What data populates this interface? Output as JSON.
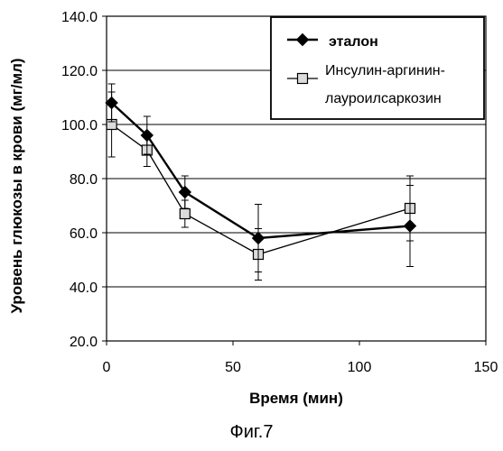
{
  "chart_data": {
    "type": "line",
    "xlabel": "Время (мин)",
    "ylabel": "Уровень глюкозы в крови (мг/мл)",
    "xlim": [
      0,
      150
    ],
    "ylim": [
      20,
      140
    ],
    "x_ticks": [
      "0",
      "50",
      "100",
      "150"
    ],
    "y_ticks": [
      "20.0",
      "40.0",
      "60.0",
      "80.0",
      "100.0",
      "120.0",
      "140.0"
    ],
    "grid": "horizontal",
    "legend_position": "top-right",
    "series": [
      {
        "name": "эталон",
        "marker": "diamond",
        "color": "#000000",
        "x": [
          2,
          16,
          31,
          60,
          120
        ],
        "y": [
          108,
          96,
          75,
          58,
          62.5
        ],
        "error": [
          7,
          7,
          6,
          12.5,
          15
        ]
      },
      {
        "name": "Инсулин-аргинин-лауроилсаркозин",
        "legend_lines": [
          "Инсулин-аргинин-",
          "лауроилсаркозин"
        ],
        "marker": "square",
        "color": "#000000",
        "x": [
          2,
          16,
          31,
          60,
          120
        ],
        "y": [
          100,
          90.5,
          67,
          52,
          69
        ],
        "error": [
          12,
          6,
          5,
          9.5,
          12
        ]
      }
    ]
  },
  "caption": "Фиг.7"
}
